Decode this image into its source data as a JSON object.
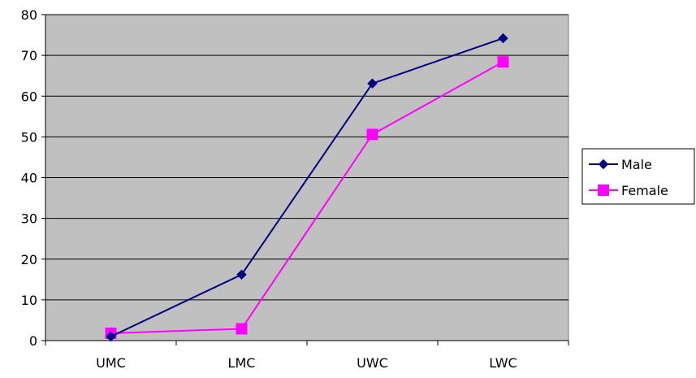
{
  "chart_data": {
    "type": "line",
    "title": "",
    "xlabel": "",
    "ylabel": "",
    "categories": [
      "UMC",
      "LMC",
      "UWC",
      "LWC"
    ],
    "ylim": [
      0,
      80
    ],
    "yticks": [
      0,
      10,
      20,
      30,
      40,
      50,
      60,
      70,
      80
    ],
    "grid": true,
    "legend_position": "right",
    "plot_background": "#c0c0c0",
    "series": [
      {
        "name": "Male",
        "color": "#000080",
        "marker": "diamond",
        "values": [
          1.0,
          16.2,
          63.1,
          74.2
        ]
      },
      {
        "name": "Female",
        "color": "#ff00ff",
        "marker": "square",
        "values": [
          1.8,
          2.9,
          50.6,
          68.4
        ]
      }
    ]
  }
}
